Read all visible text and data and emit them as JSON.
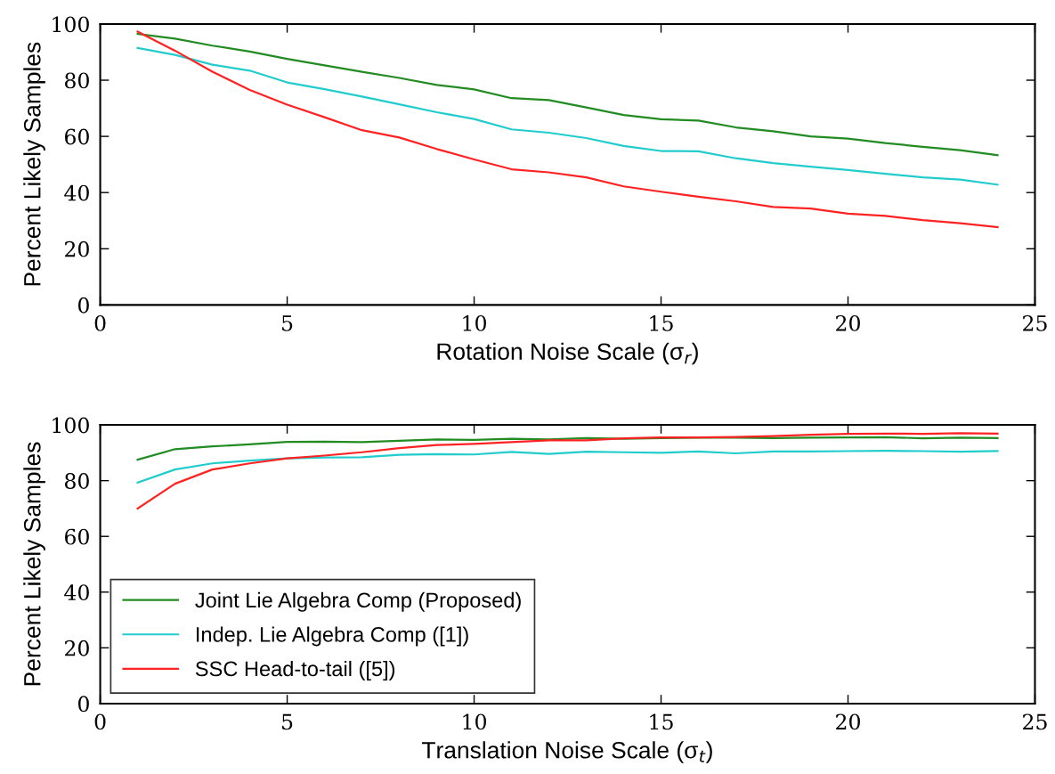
{
  "chart_data": [
    {
      "type": "line",
      "xlabel": "Rotation Noise Scale (σ$_{r}$)",
      "ylabel": "Percent Likely Samples",
      "xlim": [
        0,
        25
      ],
      "xticks": [
        0,
        5,
        10,
        15,
        20,
        25
      ],
      "ylim": [
        0,
        100
      ],
      "yticks": [
        0,
        20,
        40,
        60,
        80,
        100
      ],
      "grid": false,
      "legend": false,
      "x": [
        1,
        2,
        3,
        4,
        5,
        6,
        7,
        8,
        9,
        10,
        11,
        12,
        13,
        14,
        15,
        16,
        17,
        18,
        19,
        20,
        21,
        22,
        23,
        24
      ],
      "series": [
        {
          "color": "#228b22",
          "values": [
            96.5,
            94.8,
            92.3,
            90.2,
            87.6,
            85.3,
            83,
            80.8,
            78.3,
            76.7,
            73.6,
            72.9,
            70.3,
            67.6,
            66.1,
            65.6,
            63.2,
            61.8,
            60,
            59.2,
            57.6,
            56.3,
            55.1,
            53.3
          ]
        },
        {
          "color": "#22cccc",
          "values": [
            91.5,
            89,
            85.5,
            83.4,
            79.2,
            76.8,
            74.2,
            71.4,
            68.6,
            66.2,
            62.5,
            61.3,
            59.4,
            56.6,
            54.8,
            54.7,
            52.2,
            50.5,
            49.2,
            48,
            46.7,
            45.4,
            44.6,
            42.8
          ]
        },
        {
          "color": "#ff2222",
          "values": [
            97.3,
            90.5,
            83,
            76.5,
            71.3,
            66.8,
            62.2,
            59.6,
            55.5,
            51.8,
            48.3,
            47.2,
            45.4,
            42.2,
            40.3,
            38.5,
            36.9,
            34.9,
            34.3,
            32.5,
            31.7,
            30.2,
            29.1,
            27.7
          ]
        }
      ]
    },
    {
      "type": "line",
      "xlabel": "Translation Noise Scale (σ$_{t}$)",
      "ylabel": "Percent Likely Samples",
      "xlim": [
        0,
        25
      ],
      "xticks": [
        0,
        5,
        10,
        15,
        20,
        25
      ],
      "ylim": [
        0,
        100
      ],
      "yticks": [
        0,
        20,
        40,
        60,
        80,
        100
      ],
      "grid": false,
      "legend": "bottom left",
      "x": [
        1,
        2,
        3,
        4,
        5,
        6,
        7,
        8,
        9,
        10,
        11,
        12,
        13,
        14,
        15,
        16,
        17,
        18,
        19,
        20,
        21,
        22,
        23,
        24
      ],
      "series": [
        {
          "name": "Joint Lie Algebra Comp (Proposed)",
          "color": "#228b22",
          "values": [
            87.5,
            91.3,
            92.3,
            93,
            93.9,
            94,
            93.8,
            94.3,
            94.8,
            94.6,
            95,
            94.8,
            95.3,
            95,
            95.3,
            95.4,
            95.4,
            95.3,
            95.4,
            95.5,
            95.6,
            95.2,
            95.4,
            95.3
          ]
        },
        {
          "name": "Indep. Lie Algebra Comp ([1])",
          "color": "#22cccc",
          "values": [
            79.3,
            84,
            86.2,
            87.2,
            88,
            88.3,
            88.4,
            89.3,
            89.5,
            89.4,
            90.3,
            89.6,
            90.4,
            90.2,
            90,
            90.5,
            89.8,
            90.5,
            90.5,
            90.6,
            90.7,
            90.6,
            90.4,
            90.6
          ]
        },
        {
          "name": "SSC Head-to-tail ([5])",
          "color": "#ff2222",
          "values": [
            70,
            78.9,
            84,
            86.2,
            88,
            89,
            90.2,
            91.7,
            92.8,
            93.2,
            93.8,
            94.5,
            94.5,
            95.2,
            95.5,
            95.5,
            95.7,
            96,
            96.5,
            96.8,
            96.9,
            96.8,
            97,
            96.9
          ]
        }
      ]
    }
  ]
}
